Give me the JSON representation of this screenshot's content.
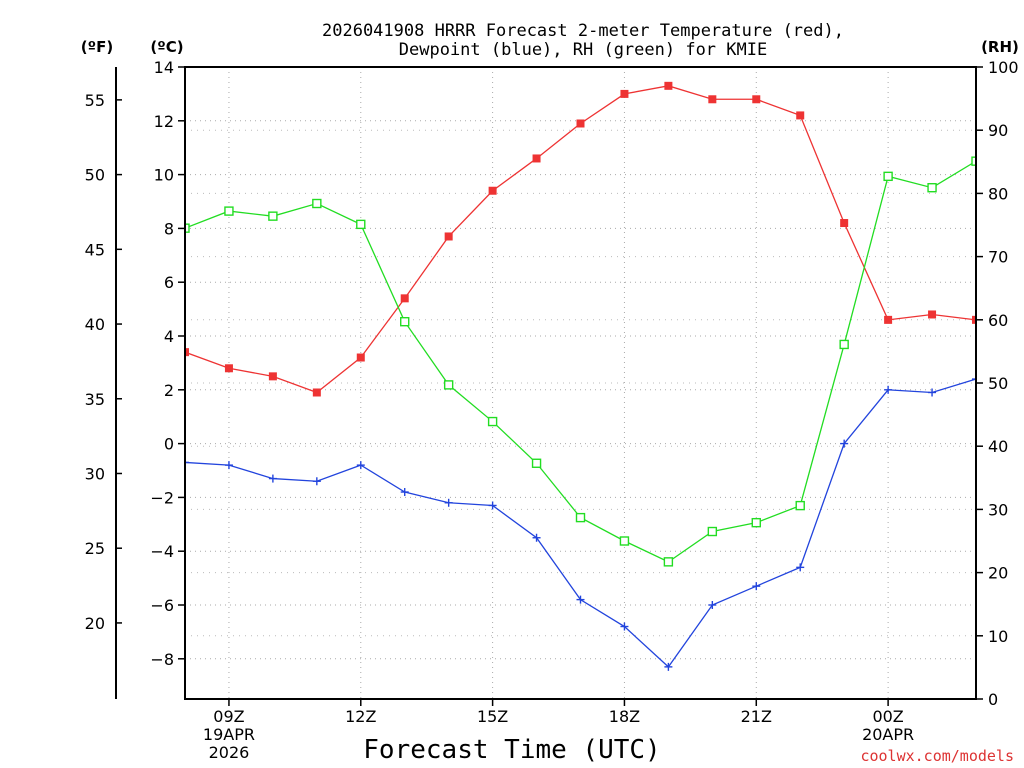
{
  "chart_data": {
    "type": "line",
    "title_line1": "2026041908 HRRR Forecast 2-meter Temperature (red),",
    "title_line2": "Dewpoint (blue), RH (green) for KMIE",
    "xlabel": "Forecast Time (UTC)",
    "credit": "coolwx.com/models",
    "units": {
      "fahrenheit": "(ºF)",
      "celsius": "(ºC)",
      "rh": "(RH)"
    },
    "x_range_hours": [
      8,
      26
    ],
    "x_ticks": [
      {
        "hour": 9,
        "line1": "09Z",
        "line2": "19APR",
        "line3": "2026"
      },
      {
        "hour": 12,
        "line1": "12Z",
        "line2": "",
        "line3": ""
      },
      {
        "hour": 15,
        "line1": "15Z",
        "line2": "",
        "line3": ""
      },
      {
        "hour": 18,
        "line1": "18Z",
        "line2": "",
        "line3": ""
      },
      {
        "hour": 21,
        "line1": "21Z",
        "line2": "",
        "line3": ""
      },
      {
        "hour": 24,
        "line1": "00Z",
        "line2": "20APR",
        "line3": ""
      }
    ],
    "celsius_axis": {
      "min": -9.5,
      "max": 14,
      "ticks": [
        -8,
        -6,
        -4,
        -2,
        0,
        2,
        4,
        6,
        8,
        10,
        12,
        14
      ],
      "labels": [
        "−8",
        "−6",
        "−4",
        "−2",
        "0",
        "2",
        "4",
        "6",
        "8",
        "10",
        "12",
        "14"
      ]
    },
    "fahrenheit_axis": {
      "ticks": [
        20,
        25,
        30,
        35,
        40,
        45,
        50,
        55
      ],
      "labels": [
        "20",
        "25",
        "30",
        "35",
        "40",
        "45",
        "50",
        "55"
      ]
    },
    "rh_axis": {
      "min": 0,
      "max": 100,
      "ticks": [
        0,
        10,
        20,
        30,
        40,
        50,
        60,
        70,
        80,
        90,
        100
      ],
      "labels": [
        "0",
        "10",
        "20",
        "30",
        "40",
        "50",
        "60",
        "70",
        "80",
        "90",
        "100"
      ]
    },
    "hours": [
      8,
      9,
      10,
      11,
      12,
      13,
      14,
      15,
      16,
      17,
      18,
      19,
      20,
      21,
      22,
      23,
      24,
      25,
      26
    ],
    "series": [
      {
        "name": "2-meter Temperature",
        "axis": "celsius",
        "color": "#ee3333",
        "marker": "filled-square",
        "values": [
          3.4,
          2.8,
          2.5,
          1.9,
          3.2,
          5.4,
          7.7,
          9.4,
          10.6,
          11.9,
          13.0,
          13.3,
          12.8,
          12.8,
          12.2,
          8.2,
          4.6,
          4.8,
          4.6
        ]
      },
      {
        "name": "Dewpoint",
        "axis": "celsius",
        "color": "#2244dd",
        "marker": "plus",
        "values": [
          -0.7,
          -0.8,
          -1.3,
          -1.4,
          -0.8,
          -1.8,
          -2.2,
          -2.3,
          -3.5,
          -5.8,
          -6.8,
          -8.3,
          -6.0,
          -5.3,
          -4.6,
          0.0,
          2.0,
          1.9,
          2.4
        ]
      },
      {
        "name": "Relative Humidity",
        "axis": "rh",
        "color": "#22dd22",
        "marker": "open-square",
        "values": [
          74.5,
          77.2,
          76.4,
          78.4,
          75.1,
          59.7,
          49.7,
          43.9,
          37.3,
          28.7,
          25.0,
          21.7,
          26.5,
          27.9,
          30.6,
          56.1,
          82.7,
          80.9,
          85.1
        ]
      }
    ]
  }
}
